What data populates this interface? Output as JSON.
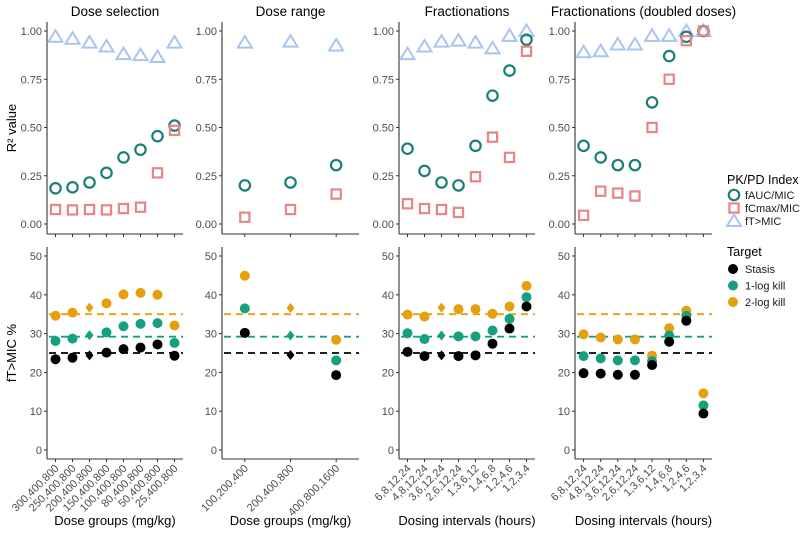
{
  "chart_data": {
    "type": "scatter",
    "ylabel_top": "R² value",
    "ylabel_bottom": "fT>MIC %",
    "ylim_top": [
      0,
      1
    ],
    "yticks_top": [
      "0.00",
      "0.25",
      "0.50",
      "0.75",
      "1.00"
    ],
    "ylim_bottom": [
      0,
      50
    ],
    "yticks_bottom": [
      "0",
      "10",
      "20",
      "30",
      "40",
      "50"
    ],
    "grid": false,
    "legend_position": "right",
    "legend_pkpd": {
      "title": "PK/PD Index",
      "entries": [
        {
          "name": "fAUC/MIC",
          "shape": "circle-open",
          "color": "#1b7f76"
        },
        {
          "name": "fCmax/MIC",
          "shape": "square-open",
          "color": "#e88686"
        },
        {
          "name": "fT>MIC",
          "shape": "triangle-open",
          "color": "#a9c4f0"
        }
      ]
    },
    "legend_target": {
      "title": "Target",
      "entries": [
        {
          "name": "Stasis",
          "color": "#000000"
        },
        {
          "name": "1-log kill",
          "color": "#16a080"
        },
        {
          "name": "2-log kill",
          "color": "#e6a00e"
        }
      ]
    },
    "target_thresholds": {
      "Stasis": 25,
      "1-log kill": 29.2,
      "2-log kill": 35
    },
    "panels": [
      {
        "title": "Dose selection",
        "xlabel": "Dose groups (mg/kg)",
        "categories": [
          "300,400,800",
          "250,400,800",
          "200,400,800",
          "150,400,800",
          "100,400,800",
          "80,400,800",
          "50,400,800",
          "25,400,800"
        ],
        "reference_index": 2,
        "r2": {
          "fAUC/MIC": [
            0.185,
            0.19,
            0.215,
            0.265,
            0.345,
            0.385,
            0.455,
            0.51
          ],
          "fCmax/MIC": [
            0.075,
            0.073,
            0.075,
            0.073,
            0.08,
            0.087,
            0.265,
            0.485
          ],
          "fT>MIC": [
            0.97,
            0.96,
            0.94,
            0.92,
            0.88,
            0.875,
            0.865,
            0.94
          ]
        },
        "ft_mic": {
          "Stasis": [
            23.4,
            23.8,
            24.4,
            25.1,
            26.0,
            26.4,
            27.2,
            24.3
          ],
          "1-log kill": [
            28.1,
            28.7,
            29.6,
            30.3,
            31.9,
            32.5,
            32.7,
            27.6
          ],
          "2-log kill": [
            34.6,
            35.4,
            36.7,
            37.8,
            40.1,
            40.5,
            40.0,
            32.1
          ]
        }
      },
      {
        "title": "Dose range",
        "xlabel": "Dose groups (mg/kg)",
        "categories": [
          "100,200,400",
          "200,400,800",
          "400,800,1600"
        ],
        "reference_index": 1,
        "r2": {
          "fAUC/MIC": [
            0.2,
            0.215,
            0.305
          ],
          "fCmax/MIC": [
            0.035,
            0.075,
            0.155
          ],
          "fT>MIC": [
            0.94,
            0.945,
            0.925
          ]
        },
        "ft_mic": {
          "Stasis": [
            30.2,
            24.5,
            19.3
          ],
          "1-log kill": [
            36.5,
            29.5,
            23.1
          ],
          "2-log kill": [
            44.9,
            36.6,
            28.4
          ]
        }
      },
      {
        "title": "Fractionations",
        "xlabel": "Dosing intervals (hours)",
        "categories": [
          "6,8,12,24",
          "4,8,12,24",
          "3,6,12,24",
          "2,6,12,24",
          "1,3,6,12",
          "1,4,6,8",
          "1,2,4,6",
          "1,2,3,4"
        ],
        "reference_index": 2,
        "r2": {
          "fAUC/MIC": [
            0.39,
            0.275,
            0.215,
            0.2,
            0.405,
            0.665,
            0.795,
            0.955
          ],
          "fCmax/MIC": [
            0.105,
            0.08,
            0.075,
            0.06,
            0.245,
            0.45,
            0.345,
            0.895
          ],
          "fT>MIC": [
            0.88,
            0.92,
            0.945,
            0.95,
            0.94,
            0.91,
            0.975,
            1.0
          ]
        },
        "ft_mic": {
          "Stasis": [
            25.3,
            24.2,
            24.4,
            24.2,
            24.4,
            27.4,
            31.3,
            37.0
          ],
          "1-log kill": [
            30.1,
            28.6,
            29.5,
            29.3,
            29.3,
            30.8,
            33.8,
            39.4
          ],
          "2-log kill": [
            34.9,
            34.4,
            36.7,
            36.3,
            36.3,
            35.1,
            37.0,
            42.3
          ]
        }
      },
      {
        "title": "Fractionations (doubled doses)",
        "xlabel": "Dosing intervals (hours)",
        "categories": [
          "6,8,12,24",
          "4,8,12,24",
          "3,6,12,24",
          "2,6,12,24",
          "1,3,6,12",
          "1,4,6,8",
          "1,2,4,6",
          "1,2,3,4"
        ],
        "reference_index": null,
        "r2": {
          "fAUC/MIC": [
            0.405,
            0.345,
            0.305,
            0.305,
            0.63,
            0.87,
            0.97,
            1.0
          ],
          "fCmax/MIC": [
            0.045,
            0.17,
            0.16,
            0.145,
            0.5,
            0.75,
            0.95,
            1.0
          ],
          "fT>MIC": [
            0.89,
            0.895,
            0.93,
            0.93,
            0.975,
            0.975,
            1.0,
            1.0
          ]
        },
        "ft_mic": {
          "Stasis": [
            19.8,
            19.7,
            19.4,
            19.4,
            21.9,
            27.9,
            33.3,
            9.4
          ],
          "1-log kill": [
            24.2,
            23.6,
            23.1,
            23.1,
            22.9,
            29.5,
            34.6,
            11.5
          ],
          "2-log kill": [
            29.8,
            29.0,
            28.5,
            28.5,
            24.3,
            31.4,
            35.9,
            14.6
          ]
        }
      }
    ]
  }
}
